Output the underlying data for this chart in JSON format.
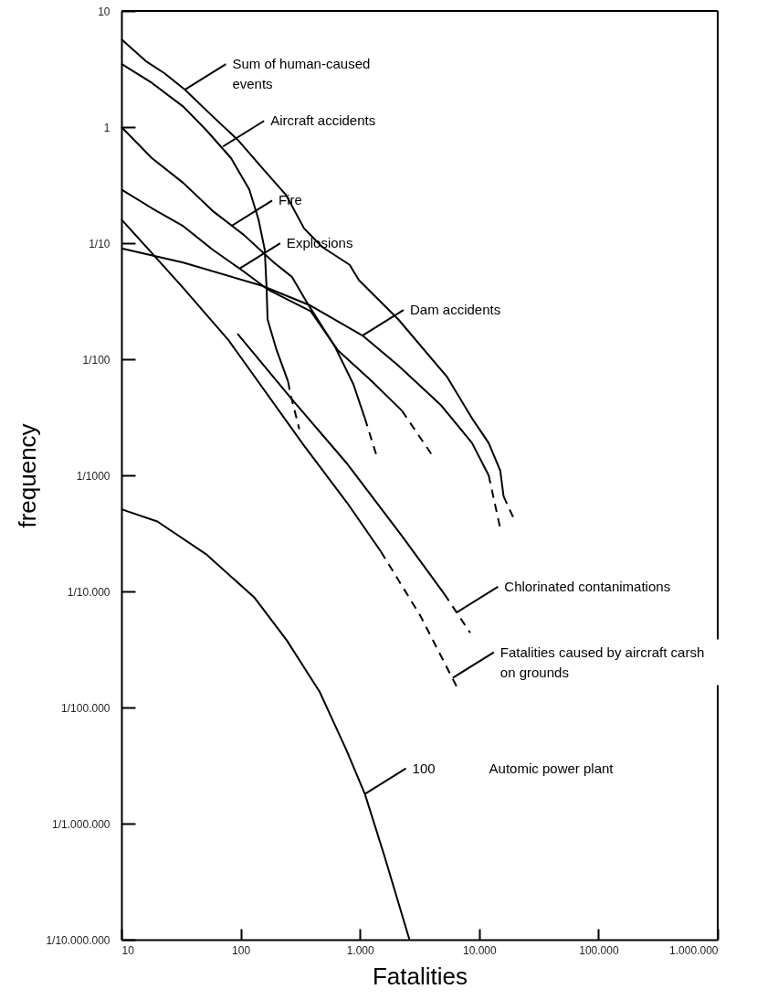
{
  "chart_data": {
    "type": "line",
    "log": "xy",
    "xlabel": "Fatalities",
    "ylabel": "frequency",
    "xlim": [
      10,
      1000000
    ],
    "ylim": [
      1e-07,
      10
    ],
    "xticks": [
      10,
      100,
      {
        "value": 1000,
        "label": "1.000"
      },
      {
        "value": 10000,
        "label": "10.000"
      },
      {
        "value": 100000,
        "label": "100.000"
      },
      {
        "value": 1000000,
        "label": "1.000.000"
      }
    ],
    "yticks": [
      {
        "value": 1e-07,
        "label": "1/10.000.000"
      },
      {
        "value": 1e-06,
        "label": "1/1.000.000"
      },
      {
        "value": 1e-05,
        "label": "1/100.000"
      },
      {
        "value": 0.0001,
        "label": "1/10.000"
      },
      {
        "value": 0.001,
        "label": "1/1000"
      },
      {
        "value": 0.01,
        "label": "1/100"
      },
      {
        "value": 0.1,
        "label": "1/10"
      },
      1,
      10
    ],
    "series": [
      {
        "color": "#000000",
        "x": [
          10,
          16,
          23,
          34,
          58,
          94,
          150,
          240,
          340,
          480,
          820,
          980,
          2100,
          5400,
          8700,
          12000,
          15000,
          16000
        ],
        "values": [
          5.7,
          3.7,
          2.9,
          2.1,
          1.24,
          0.78,
          0.45,
          0.26,
          0.134,
          0.093,
          0.065,
          0.048,
          0.022,
          0.007,
          0.0031,
          0.0019,
          0.0011,
          0.00066
        ]
      },
      {
        "color": "#000000",
        "line_style": "dashed",
        "x": [
          16000,
          20000
        ],
        "values": [
          0.00066,
          0.0004
        ]
      },
      {
        "color": "#000000",
        "x": [
          10,
          18,
          33,
          52,
          83,
          118,
          141,
          159,
          165,
          168,
          200,
          250
        ],
        "values": [
          3.5,
          2.4,
          1.5,
          0.93,
          0.54,
          0.29,
          0.16,
          0.088,
          0.04,
          0.022,
          0.012,
          0.0064
        ]
      },
      {
        "color": "#000000",
        "line_style": "dashed",
        "x": [
          250,
          260,
          310
        ],
        "values": [
          0.0064,
          0.0051,
          0.0025
        ]
      },
      {
        "color": "#000000",
        "x": [
          10,
          18,
          33,
          58,
          106,
          190,
          270,
          365,
          620,
          880,
          1100
        ],
        "values": [
          1,
          0.54,
          0.33,
          0.19,
          0.118,
          0.068,
          0.051,
          0.03,
          0.0127,
          0.0061,
          0.0031
        ]
      },
      {
        "color": "#000000",
        "line_style": "dashed",
        "x": [
          1100,
          1400
        ],
        "values": [
          0.0031,
          0.0014
        ]
      },
      {
        "color": "#000000",
        "x": [
          10,
          18,
          33,
          58,
          106,
          168,
          385,
          650,
          1250,
          2250
        ],
        "values": [
          0.29,
          0.2,
          0.14,
          0.088,
          0.057,
          0.04,
          0.026,
          0.012,
          0.0065,
          0.0036
        ]
      },
      {
        "color": "#000000",
        "line_style": "dashed",
        "x": [
          2250,
          4200
        ],
        "values": [
          0.0036,
          0.0014
        ]
      },
      {
        "color": "#000000",
        "x": [
          10,
          33,
          150,
          385,
          1050,
          2100,
          4800,
          8700,
          12000
        ],
        "values": [
          0.09,
          0.068,
          0.043,
          0.029,
          0.016,
          0.0088,
          0.004,
          0.0019,
          0.001
        ]
      },
      {
        "color": "#000000",
        "line_style": "dashed",
        "x": [
          12000,
          15000
        ],
        "values": [
          0.001,
          0.00035
        ]
      },
      {
        "color": "#000000",
        "x": [
          94,
          270,
          780,
          2250,
          5100
        ],
        "values": [
          0.0166,
          0.0045,
          0.00126,
          0.0003,
          9.5e-05
        ]
      },
      {
        "color": "#000000",
        "line_style": "dashed",
        "x": [
          5100,
          8400
        ],
        "values": [
          9.5e-05,
          4.4e-05
        ]
      },
      {
        "color": "#000000",
        "x": [
          10,
          18,
          33,
          79,
          340,
          780,
          1500
        ],
        "values": [
          0.16,
          0.082,
          0.041,
          0.0146,
          0.0018,
          0.00058,
          0.00022
        ]
      },
      {
        "color": "#000000",
        "line_style": "dashed",
        "x": [
          1500,
          3200,
          6500
        ],
        "values": [
          0.00022,
          6.2e-05,
          1.5e-05
        ]
      },
      {
        "color": "#000000",
        "x": [
          10,
          20,
          51,
          131,
          243,
          460,
          770,
          1100,
          1600,
          2600
        ],
        "values": [
          0.00051,
          0.0004,
          0.00021,
          8.8e-05,
          3.8e-05,
          1.36e-05,
          4.3e-06,
          1.8e-06,
          5.3e-07,
          1e-07
        ]
      }
    ],
    "annotations": [
      {
        "text": "Sum of human-caused\nevents",
        "x": 34,
        "y": 2.1
      },
      {
        "text": "Aircraft accidents",
        "x": 71,
        "y": 0.68
      },
      {
        "text": "Fire",
        "x": 83,
        "y": 0.14
      },
      {
        "text": "Explosions",
        "x": 97,
        "y": 0.06
      },
      {
        "text": "Dam accidents",
        "x": 1050,
        "y": 0.016
      },
      {
        "text": "Chlorinated contanimations",
        "x": 6500,
        "y": 6.6e-05
      },
      {
        "text": "Fatalities caused by aircraft carsh\non grounds",
        "x": 6000,
        "y": 1.8e-05
      },
      {
        "text": "100",
        "x": 1100,
        "y": 1.8e-06
      },
      "Automic power plant"
    ]
  }
}
